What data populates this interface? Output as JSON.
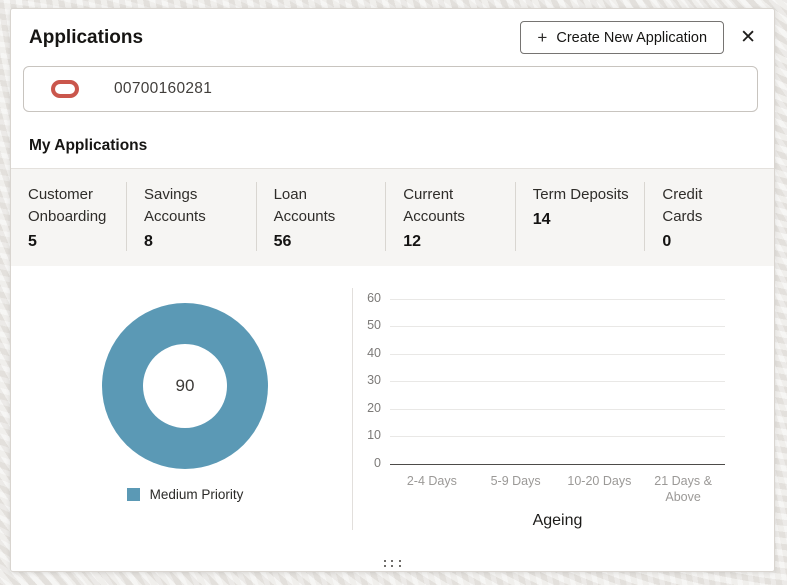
{
  "header": {
    "title": "Applications",
    "create_button_label": "Create New Application",
    "plus_glyph": "+",
    "close_glyph": "✕"
  },
  "application_field": {
    "value": "00700160281",
    "icon": "oracle-ring-icon"
  },
  "section": {
    "title": "My Applications"
  },
  "stats": [
    {
      "label": "Customer\nOnboarding",
      "value": "5"
    },
    {
      "label": "Savings\nAccounts",
      "value": "8"
    },
    {
      "label": "Loan\nAccounts",
      "value": "56"
    },
    {
      "label": "Current\nAccounts",
      "value": "12"
    },
    {
      "label": "Term Deposits",
      "value": "14"
    },
    {
      "label": "Credit\nCards",
      "value": "0"
    }
  ],
  "chart_data": [
    {
      "type": "pie",
      "subtype": "donut",
      "labels": [
        "Medium Priority"
      ],
      "values": [
        90
      ],
      "center_label": "90",
      "colors": [
        "#5B99B5"
      ],
      "legend_position": "bottom"
    },
    {
      "type": "bar",
      "categories": [
        "2-4 Days",
        "5-9 Days",
        "10-20 Days",
        "21 Days & Above"
      ],
      "values": [
        0,
        0,
        0,
        0
      ],
      "title": "",
      "xlabel": "Ageing",
      "ylabel": "",
      "ylim": [
        0,
        60
      ],
      "yticks": [
        0,
        10,
        20,
        30,
        40,
        50,
        60
      ],
      "grid": true,
      "bar_color": "#5B99B5"
    }
  ],
  "colors": {
    "accent_teal": "#5B99B5",
    "oracle_red": "#CA564C",
    "stats_bg": "#F6F5F3"
  },
  "footer": {
    "handle": "resize-dots"
  }
}
